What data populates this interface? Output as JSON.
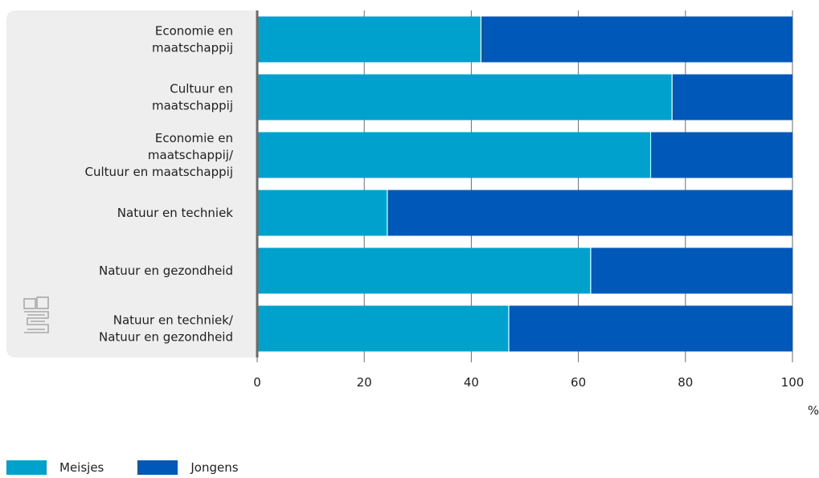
{
  "chart_data": {
    "type": "bar",
    "orientation": "horizontal",
    "stacked": true,
    "categories": [
      [
        "Economie en",
        "maatschappij"
      ],
      [
        "Cultuur en",
        "maatschappij"
      ],
      [
        "Economie en",
        "maatschappij/",
        "Cultuur en maatschappij"
      ],
      [
        "Natuur en techniek"
      ],
      [
        "Natuur en gezondheid"
      ],
      [
        "Natuur en techniek/",
        "Natuur en gezondheid"
      ]
    ],
    "series": [
      {
        "name": "Meisjes",
        "color": "#00a1cd",
        "values": [
          41.8,
          77.5,
          73.5,
          24.3,
          62.3,
          47.0
        ]
      },
      {
        "name": "Jongens",
        "color": "#0058b8",
        "values": [
          58.2,
          22.5,
          26.5,
          75.7,
          37.7,
          53.0
        ]
      }
    ],
    "xlim": [
      0,
      100
    ],
    "xticks": [
      "0",
      "20",
      "40",
      "60",
      "80",
      "100"
    ],
    "xticks_values": [
      0,
      20,
      40,
      60,
      80,
      100
    ],
    "unit": "%",
    "legend_position": "bottom-left",
    "grid": true
  }
}
